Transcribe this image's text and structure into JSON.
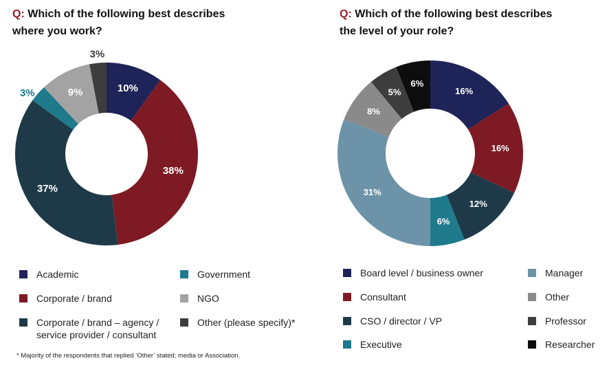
{
  "chart_data": [
    {
      "type": "pie",
      "donut": true,
      "question_prefix": "Q:",
      "title_line1": "Which of the following best describes",
      "title_line2": "where you work?",
      "slices": [
        {
          "name": "Academic",
          "value": 10,
          "label": "10%",
          "color": "#1e2358"
        },
        {
          "name": "Corporate / brand",
          "value": 38,
          "label": "38%",
          "color": "#7d1a23"
        },
        {
          "name": "Corporate / brand – agency / service provider / consultant",
          "value": 37,
          "label": "37%",
          "color": "#1e3a48"
        },
        {
          "name": "Government",
          "value": 3,
          "label": "3%",
          "color": "#1f7a8c"
        },
        {
          "name": "NGO",
          "value": 9,
          "label": "9%",
          "color": "#a3a3a3"
        },
        {
          "name": "Other (please specify)*",
          "value": 3,
          "label": "3%",
          "color": "#3d3d3d"
        }
      ],
      "legend": [
        {
          "line1": "Academic",
          "line2": "",
          "color": "#1e2358"
        },
        {
          "line1": "Corporate / brand",
          "line2": "",
          "color": "#7d1a23"
        },
        {
          "line1": "Corporate / brand – agency /",
          "line2": "service provider / consultant",
          "color": "#1e3a48"
        },
        {
          "line1": "Government",
          "line2": "",
          "color": "#1f7a8c"
        },
        {
          "line1": "NGO",
          "line2": "",
          "color": "#a3a3a3"
        },
        {
          "line1": "Other (please specify)*",
          "line2": "",
          "color": "#3d3d3d"
        }
      ],
      "footnote": "* Majority of the respondents that replied ‘Other’ stated; media or Association."
    },
    {
      "type": "pie",
      "donut": true,
      "question_prefix": "Q:",
      "title_line1": "Which of the following best describes",
      "title_line2": "the level of your role?",
      "slices": [
        {
          "name": "Board level / business owner",
          "value": 16,
          "label": "16%",
          "color": "#1e2358"
        },
        {
          "name": "Consultant",
          "value": 16,
          "label": "16%",
          "color": "#7d1a23"
        },
        {
          "name": "CSO / director / VP",
          "value": 12,
          "label": "12%",
          "color": "#1e3a48"
        },
        {
          "name": "Executive",
          "value": 6,
          "label": "6%",
          "color": "#1f7a8c"
        },
        {
          "name": "Manager",
          "value": 31,
          "label": "31%",
          "color": "#6d93a8"
        },
        {
          "name": "Other",
          "value": 8,
          "label": "8%",
          "color": "#8a8a8a"
        },
        {
          "name": "Professor",
          "value": 5,
          "label": "5%",
          "color": "#3d3d3d"
        },
        {
          "name": "Researcher",
          "value": 6,
          "label": "6%",
          "color": "#0d0d0d"
        }
      ],
      "legend": [
        {
          "line1": "Board level / business owner",
          "color": "#1e2358"
        },
        {
          "line1": "Consultant",
          "color": "#7d1a23"
        },
        {
          "line1": "CSO / director / VP",
          "color": "#1e3a48"
        },
        {
          "line1": "Executive",
          "color": "#1f7a8c"
        },
        {
          "line1": "Manager",
          "color": "#6d93a8"
        },
        {
          "line1": "Other",
          "color": "#8a8a8a"
        },
        {
          "line1": "Professor",
          "color": "#3d3d3d"
        },
        {
          "line1": "Researcher",
          "color": "#0d0d0d"
        }
      ]
    }
  ]
}
